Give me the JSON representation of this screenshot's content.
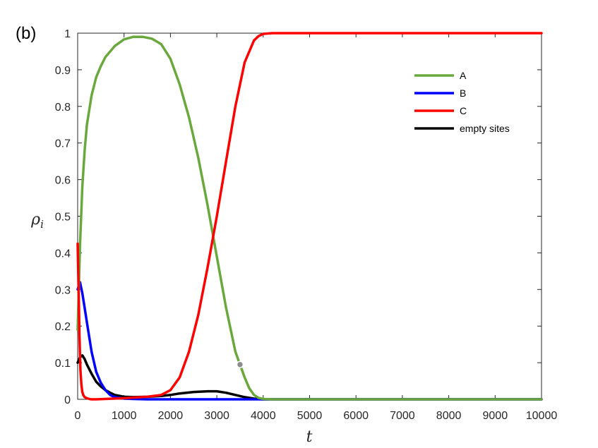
{
  "panel_label": "(b)",
  "chart_data": {
    "type": "line",
    "xlabel": "t",
    "ylabel": "ρi",
    "xlim": [
      0,
      10000
    ],
    "ylim": [
      0,
      1
    ],
    "xticks": [
      0,
      1000,
      2000,
      3000,
      4000,
      5000,
      6000,
      7000,
      8000,
      9000,
      10000
    ],
    "yticks": [
      0,
      0.1,
      0.2,
      0.3,
      0.4,
      0.5,
      0.6,
      0.7,
      0.8,
      0.9,
      1
    ],
    "grid": false,
    "legend_position": "top-right",
    "series": [
      {
        "name": "A",
        "color": "#6aa83e",
        "x": [
          0,
          50,
          100,
          150,
          200,
          300,
          400,
          500,
          600,
          800,
          1000,
          1200,
          1400,
          1600,
          1800,
          2000,
          2200,
          2400,
          2600,
          2800,
          3000,
          3200,
          3400,
          3500,
          3600,
          3700,
          3800,
          3900,
          4000,
          4200,
          5000,
          10000
        ],
        "y": [
          0.19,
          0.42,
          0.58,
          0.68,
          0.75,
          0.83,
          0.88,
          0.91,
          0.935,
          0.965,
          0.983,
          0.99,
          0.99,
          0.985,
          0.97,
          0.93,
          0.86,
          0.77,
          0.66,
          0.53,
          0.39,
          0.25,
          0.13,
          0.095,
          0.06,
          0.03,
          0.012,
          0.004,
          0.001,
          0,
          0,
          0
        ]
      },
      {
        "name": "B",
        "color": "#0000ff",
        "x": [
          0,
          50,
          100,
          150,
          200,
          300,
          400,
          500,
          600,
          700,
          800,
          1000,
          1200,
          1500,
          2000,
          10000
        ],
        "y": [
          0.3,
          0.32,
          0.29,
          0.25,
          0.21,
          0.13,
          0.075,
          0.045,
          0.025,
          0.012,
          0.006,
          0.002,
          0.001,
          0,
          0,
          0
        ]
      },
      {
        "name": "C",
        "color": "#ff0000",
        "x": [
          0,
          20,
          40,
          60,
          80,
          100,
          120,
          150,
          200,
          250,
          300,
          400,
          1000,
          1500,
          1800,
          2000,
          2200,
          2400,
          2600,
          2800,
          3000,
          3200,
          3400,
          3600,
          3800,
          3900,
          4000,
          4200,
          5000,
          10000
        ],
        "y": [
          0.425,
          0.3,
          0.17,
          0.08,
          0.04,
          0.02,
          0.012,
          0.006,
          0.003,
          0.001,
          0,
          0,
          0.003,
          0.007,
          0.012,
          0.025,
          0.06,
          0.13,
          0.23,
          0.36,
          0.5,
          0.65,
          0.8,
          0.92,
          0.98,
          0.992,
          0.998,
          1,
          1,
          1
        ]
      },
      {
        "name": "empty sites",
        "color": "#000000",
        "x": [
          0,
          50,
          100,
          150,
          200,
          300,
          400,
          500,
          600,
          700,
          800,
          1000,
          1200,
          1500,
          1800,
          2000,
          2200,
          2500,
          2800,
          3000,
          3200,
          3400,
          3600,
          3800,
          3900,
          4000,
          4200,
          5000,
          10000
        ],
        "y": [
          0.1,
          0.115,
          0.12,
          0.11,
          0.095,
          0.07,
          0.048,
          0.035,
          0.025,
          0.018,
          0.012,
          0.007,
          0.006,
          0.007,
          0.009,
          0.012,
          0.016,
          0.02,
          0.022,
          0.022,
          0.018,
          0.012,
          0.006,
          0.002,
          0.001,
          0,
          0,
          0,
          0
        ]
      }
    ],
    "marker": {
      "x": 3500,
      "y": 0.095,
      "series": "A"
    }
  }
}
